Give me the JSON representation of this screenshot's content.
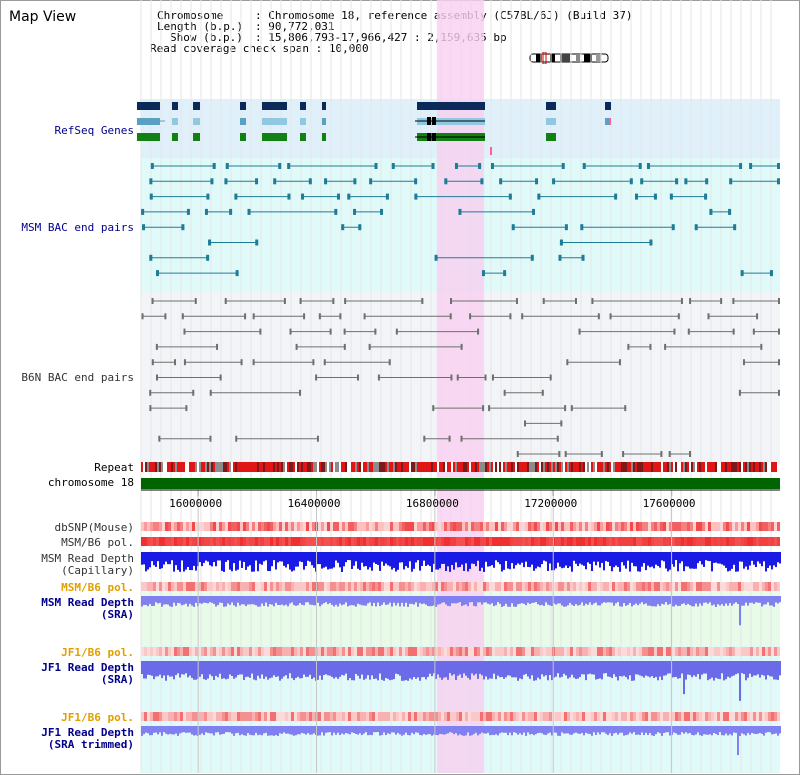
{
  "title": "Map View",
  "info": {
    "chromosome_key": "Chromosome",
    "chromosome_value": "Chromosome 18, reference assembly (C57BL/6J) (Build 37)",
    "length_key": "Length (b.p.)",
    "length_value": "90,772,031",
    "show_key": "Show (b.p.)",
    "show_value": "15,806,793-17,966,427 : 2,159,635 bp",
    "coverage_key": "Read coverage check span",
    "coverage_value": "10,000"
  },
  "tracks": {
    "refseq": "RefSeq Genes",
    "msm_bac": "MSM BAC end pairs",
    "b6n_bac": "B6N BAC end pairs",
    "repeat": "Repeat",
    "chromosome": "chromosome 18",
    "dbsnp": "dbSNP(Mouse)",
    "msm_b6_pol_1": "MSM/B6 pol.",
    "msm_read_depth_cap_1": "MSM Read Depth",
    "msm_read_depth_cap_2": "(Capillary)",
    "msm_b6_pol_2": "MSM/B6 pol.",
    "msm_read_depth_sra_1": "MSM Read Depth",
    "msm_read_depth_sra_2": "(SRA)",
    "jf1_b6_pol_1": "JF1/B6 pol.",
    "jf1_read_depth_1": "JF1 Read Depth",
    "jf1_read_depth_2": "(SRA)",
    "jf1_b6_pol_2": "JF1/B6 pol.",
    "jf1_read_depth_trim_1": "JF1 Read Depth",
    "jf1_read_depth_trim_2": "(SRA trimmed)"
  },
  "axis": {
    "ticks": [
      "16000000",
      "16400000",
      "16800000",
      "17200000",
      "17600000"
    ],
    "tick_values": [
      16000000,
      16400000,
      16800000,
      17200000,
      17600000
    ],
    "range": [
      15806793,
      17966427
    ],
    "highlight": [
      16806793,
      16966427
    ]
  },
  "colors": {
    "refseq_bg": "#dff0fa",
    "msm_bg": "#e0fafa",
    "b6n_bg": "#f2f4f8",
    "highlight": "#f7d0f0",
    "chrom_bar": "#006400",
    "msm_depth": "#1a1ae6",
    "sra_depth": "#8080f0",
    "pol_red": "#f05050"
  }
}
